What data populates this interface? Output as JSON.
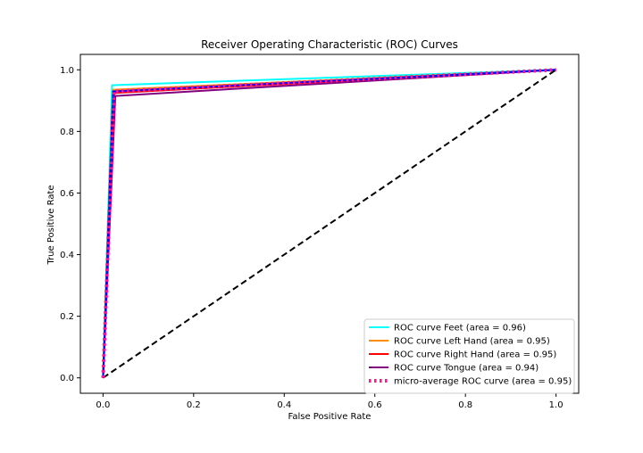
{
  "chart_data": {
    "type": "line",
    "title": "Receiver Operating Characteristic (ROC) Curves",
    "xlabel": "False Positive Rate",
    "ylabel": "True Positive Rate",
    "xlim": [
      -0.05,
      1.05
    ],
    "ylim": [
      -0.05,
      1.05
    ],
    "xticks": [
      0.0,
      0.2,
      0.4,
      0.6,
      0.8,
      1.0
    ],
    "xtick_labels": [
      "0.0",
      "0.2",
      "0.4",
      "0.6",
      "0.8",
      "1.0"
    ],
    "yticks": [
      0.0,
      0.2,
      0.4,
      0.6,
      0.8,
      1.0
    ],
    "ytick_labels": [
      "0.0",
      "0.2",
      "0.4",
      "0.6",
      "0.8",
      "1.0"
    ],
    "grid": false,
    "legend_position": "lower-right",
    "series": [
      {
        "name": "ROC curve Feet (area = 0.96)",
        "color": "#00ffff",
        "style": "solid",
        "x": [
          0.0,
          0.02,
          1.0
        ],
        "y": [
          0.0,
          0.95,
          1.0
        ]
      },
      {
        "name": "ROC curve Left Hand (area = 0.95)",
        "color": "#ff8c00",
        "style": "solid",
        "x": [
          0.0,
          0.022,
          1.0
        ],
        "y": [
          0.0,
          0.935,
          1.0
        ]
      },
      {
        "name": "ROC curve Right Hand (area = 0.95)",
        "color": "#ff0000",
        "style": "solid",
        "x": [
          0.0,
          0.025,
          1.0
        ],
        "y": [
          0.0,
          0.925,
          1.0
        ]
      },
      {
        "name": "ROC curve Tongue (area = 0.94)",
        "color": "#800080",
        "style": "solid",
        "x": [
          0.0,
          0.027,
          1.0
        ],
        "y": [
          0.0,
          0.915,
          1.0
        ]
      },
      {
        "name": "micro-average ROC curve (area = 0.95)",
        "color": "#ff1493",
        "style": "dotted",
        "x": [
          0.0,
          0.024,
          1.0
        ],
        "y": [
          0.0,
          0.93,
          1.0
        ]
      }
    ],
    "extra_series": [
      {
        "color": "#0000ff",
        "style": "solid",
        "x": [
          0.0,
          0.022,
          1.0
        ],
        "y": [
          0.0,
          0.93,
          1.0
        ]
      },
      {
        "color": "#000000",
        "style": "dashed",
        "x": [
          0.0,
          1.0
        ],
        "y": [
          0.0,
          1.0
        ]
      }
    ]
  }
}
